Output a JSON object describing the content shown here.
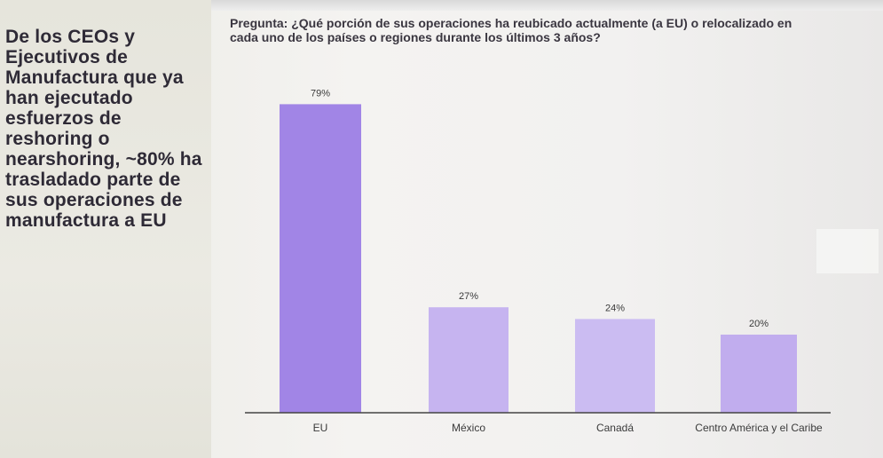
{
  "side_note": "De los CEOs y Ejecutivos de Manufactura que ya han ejecutado esfuerzos de reshoring o nearshoring, ~80% ha trasladado parte de sus operaciones de manufactura a EU",
  "question": "Pregunta: ¿Qué porción de sus operaciones ha reubicado actualmente (a EU) o relocalizado en cada uno de los países o regiones durante los últimos 3 años?",
  "chart_data": {
    "type": "bar",
    "title": "Pregunta: ¿Qué porción de sus operaciones ha reubicado actualmente (a EU) o relocalizado en cada uno de los países o regiones durante los últimos 3 años?",
    "categories": [
      "EU",
      "México",
      "Canadá",
      "Centro América y el Caribe"
    ],
    "values": [
      79,
      27,
      24,
      20
    ],
    "value_labels": [
      "79%",
      "27%",
      "24%",
      "20%"
    ],
    "ylim": [
      0,
      100
    ],
    "colors": [
      "#a185e6",
      "#c6b4f0",
      "#cbbcf2",
      "#c1adee"
    ],
    "grid": false,
    "legend": "none"
  }
}
